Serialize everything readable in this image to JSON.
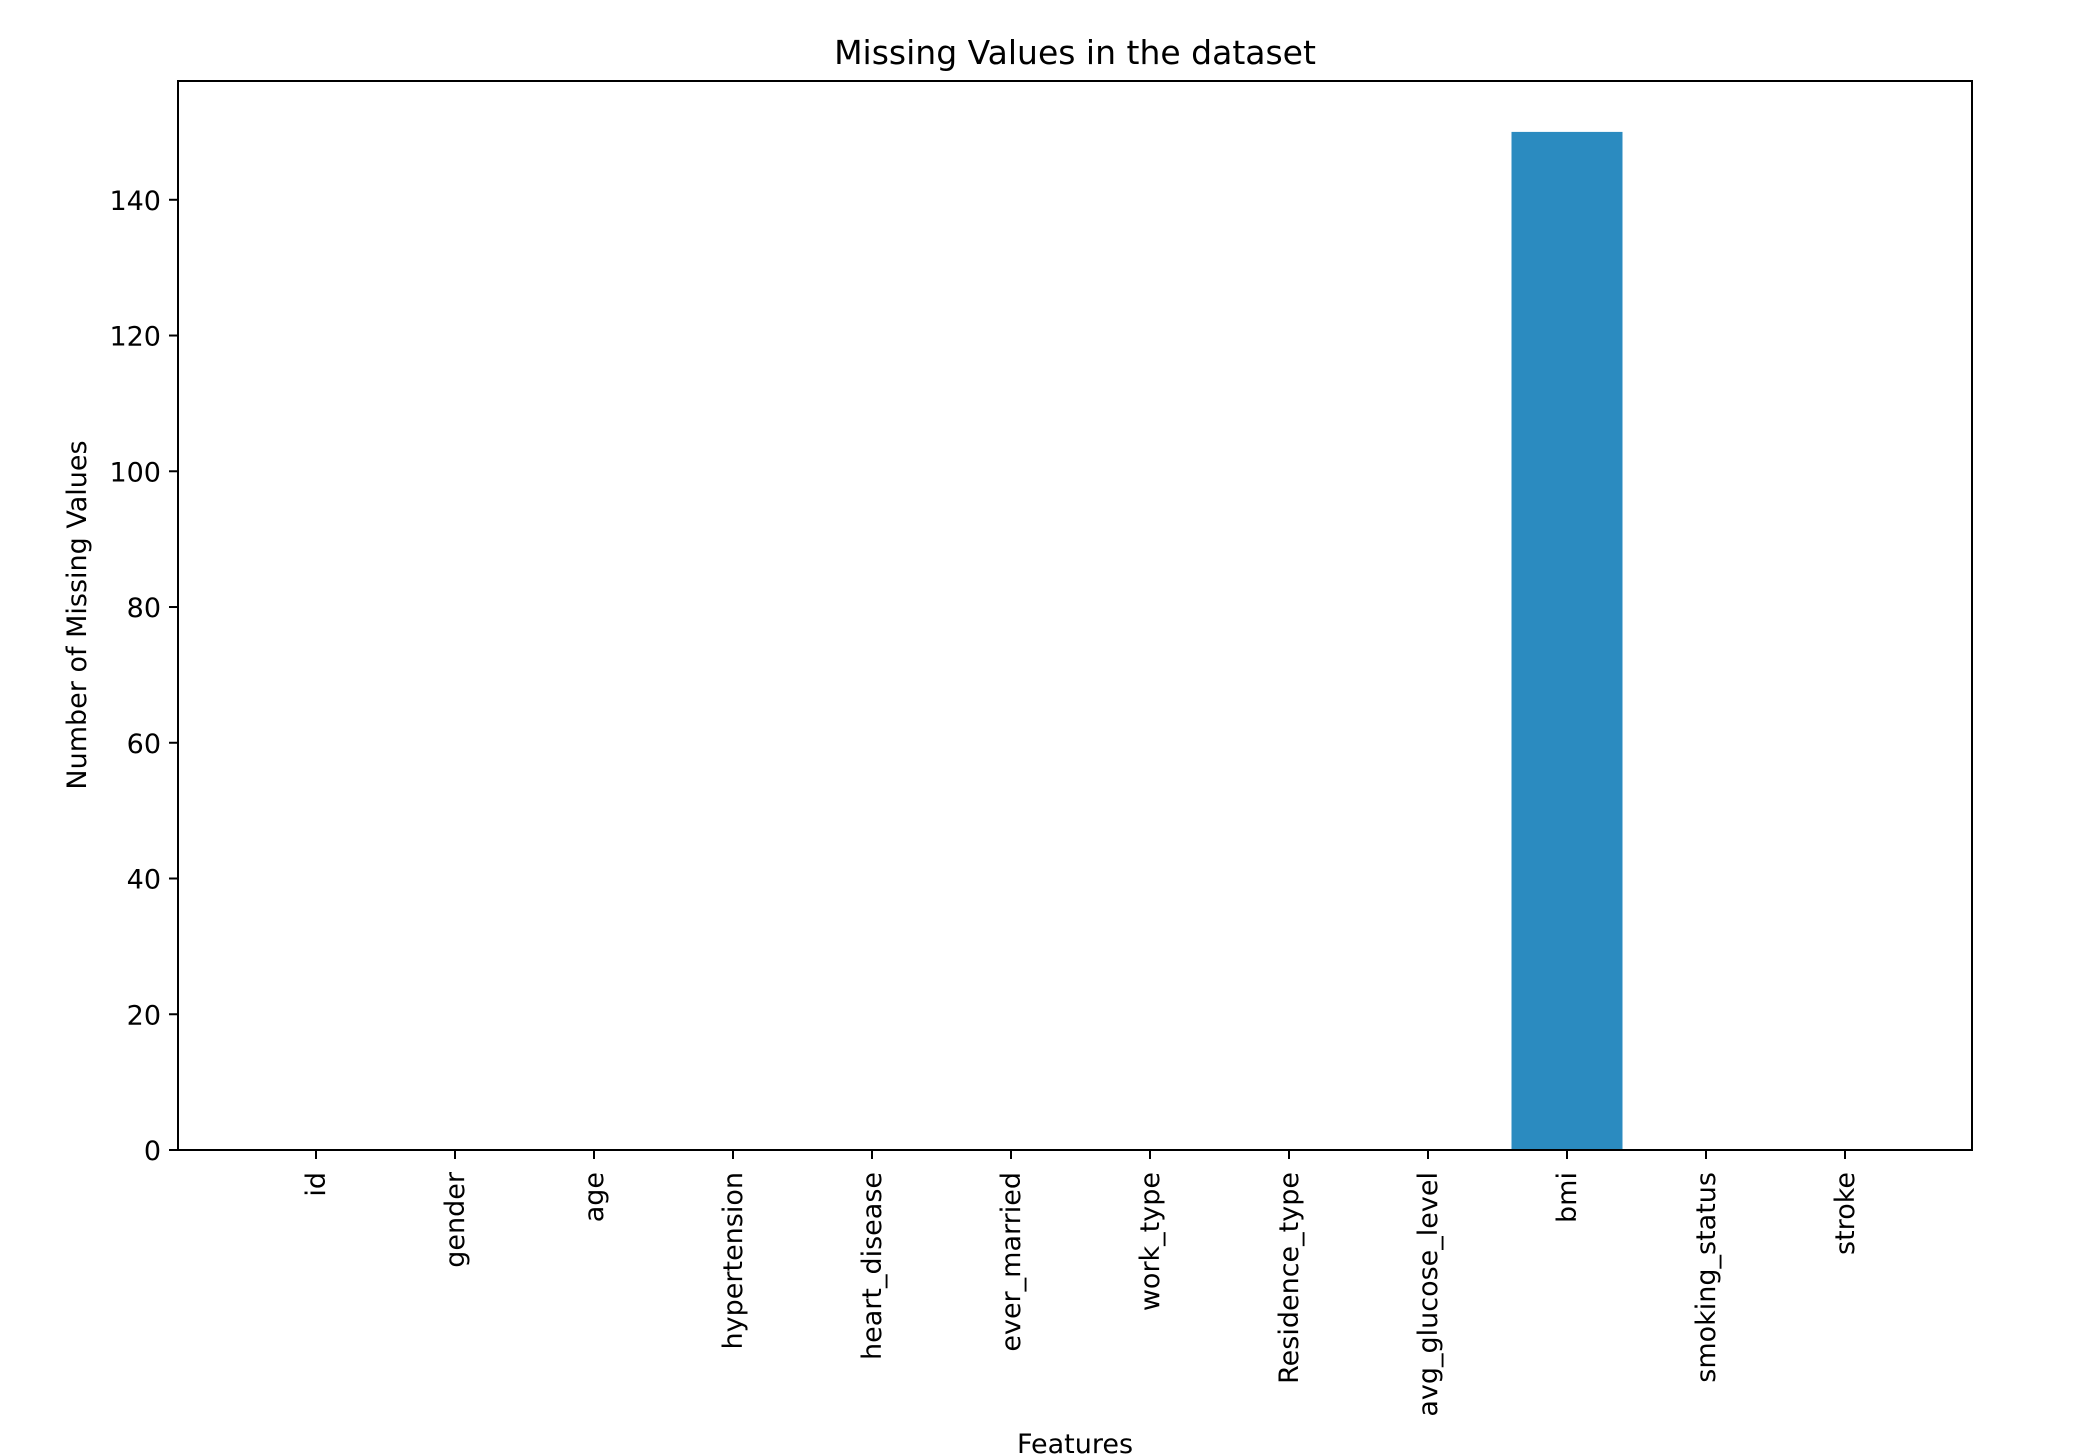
{
  "chart_data": {
    "type": "bar",
    "title": "Missing Values in the dataset",
    "xlabel": "Features",
    "ylabel": "Number of Missing Values",
    "categories": [
      "id",
      "gender",
      "age",
      "hypertension",
      "heart_disease",
      "ever_married",
      "work_type",
      "Residence_type",
      "avg_glucose_level",
      "bmi",
      "smoking_status",
      "stroke"
    ],
    "values": [
      0,
      0,
      0,
      0,
      0,
      0,
      0,
      0,
      0,
      150,
      0,
      0
    ],
    "ylim": [
      0,
      157.5
    ],
    "yticks": [
      0,
      20,
      40,
      60,
      80,
      100,
      120,
      140
    ],
    "bar_color": "#2b8bc0",
    "grid": false,
    "legend": "none"
  }
}
